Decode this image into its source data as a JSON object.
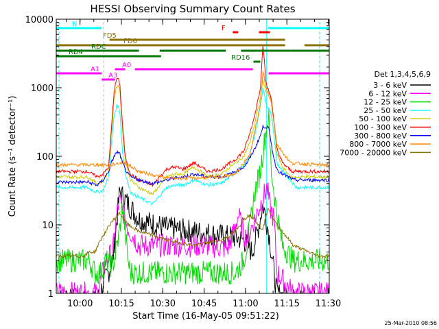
{
  "chart_data": {
    "type": "line",
    "title": "HESSI Observing Summary Count Rates",
    "xlabel": "Start Time (16-May-05 09:51:22)",
    "ylabel": "Count Rate (s⁻¹ detector⁻¹)",
    "y_scale": "log",
    "ylim": [
      1,
      10000
    ],
    "xlim_minutes": [
      0,
      99
    ],
    "x_ticks": [
      {
        "label": "10:00",
        "t": 8.63
      },
      {
        "label": "10:15",
        "t": 23.63
      },
      {
        "label": "10:30",
        "t": 38.63
      },
      {
        "label": "10:45",
        "t": 53.63
      },
      {
        "label": "11:00",
        "t": 68.63
      },
      {
        "label": "11:15",
        "t": 83.63
      },
      {
        "label": "11:30",
        "t": 98.63
      }
    ],
    "y_ticks": [
      {
        "label": "1",
        "v": 1
      },
      {
        "label": "10",
        "v": 10
      },
      {
        "label": "100",
        "v": 100
      },
      {
        "label": "1000",
        "v": 1000
      },
      {
        "label": "10000",
        "v": 10000
      }
    ],
    "timestamp": "25-Mar-2010 08:56",
    "legend_title": "Det 1,3,4,5,6,9",
    "legend_placement": "right",
    "series": [
      {
        "name": "3 - 6 keV",
        "color": "#000000",
        "key": [
          1,
          15,
          20.5,
          23,
          30,
          40,
          50,
          60,
          65,
          68,
          71,
          73,
          75,
          77,
          80,
          86,
          95
        ],
        "vals": [
          0.8,
          0.8,
          3,
          30,
          12,
          9,
          8,
          7,
          6.5,
          6,
          4,
          8,
          20,
          8,
          1,
          0.8,
          0.8
        ]
      },
      {
        "name": "6 - 12 keV",
        "color": "#ff00ff",
        "key": [
          1,
          12,
          15,
          18,
          20.5,
          22,
          23,
          26,
          30,
          40,
          55,
          62,
          64,
          66,
          69,
          72,
          75,
          76.5,
          77.5,
          79,
          80,
          86,
          95
        ],
        "vals": [
          1,
          1,
          1,
          3,
          4,
          15,
          22,
          9,
          5,
          5,
          5,
          4.5,
          7,
          14,
          6,
          12,
          25,
          35,
          18,
          12,
          2,
          1,
          1
        ]
      },
      {
        "name": "12 - 25 keV",
        "color": "#00dd00",
        "key": [
          0,
          10,
          12,
          14,
          16,
          18,
          20,
          21,
          23,
          24,
          25,
          26,
          27,
          30,
          35,
          40,
          50,
          60,
          65,
          68,
          70,
          72,
          74,
          76,
          77,
          78,
          80,
          82,
          86,
          95,
          99
        ],
        "vals": [
          3,
          3,
          3,
          2,
          2,
          3,
          2.5,
          3,
          8,
          20,
          8,
          3,
          2,
          2,
          2,
          2,
          2,
          2,
          2,
          3,
          8,
          30,
          60,
          230,
          400,
          60,
          15,
          5,
          3,
          3,
          3
        ]
      },
      {
        "name": "25 - 50 keV",
        "color": "#00ffff",
        "key": [
          0,
          10,
          11.5,
          13,
          15,
          17,
          19,
          20,
          21,
          22,
          23,
          24,
          25,
          26,
          27,
          28,
          30,
          35,
          40,
          43,
          46,
          50,
          55,
          60,
          63,
          65,
          68,
          70,
          72,
          74,
          75,
          76,
          77,
          78,
          79,
          80,
          82,
          85,
          86,
          87,
          95,
          99
        ],
        "vals": [
          35,
          35,
          35,
          32,
          30,
          32,
          50,
          150,
          400,
          550,
          500,
          120,
          60,
          40,
          30,
          28,
          25,
          20,
          35,
          38,
          38,
          45,
          38,
          40,
          50,
          60,
          70,
          100,
          200,
          550,
          1000,
          600,
          500,
          400,
          200,
          80,
          60,
          45,
          40,
          35,
          35,
          35
        ]
      },
      {
        "name": "50 - 100 keV",
        "color": "#cccc00",
        "key": [
          0,
          10,
          11.5,
          13,
          15,
          17,
          19,
          20,
          21,
          22,
          23,
          24,
          25,
          26,
          27,
          30,
          35,
          40,
          43,
          46,
          50,
          55,
          60,
          63,
          65,
          68,
          70,
          72,
          74,
          75,
          76,
          77,
          78,
          79,
          80,
          82,
          85,
          86,
          87,
          95,
          99
        ],
        "vals": [
          50,
          50,
          50,
          45,
          40,
          45,
          60,
          200,
          700,
          1100,
          1000,
          250,
          90,
          60,
          45,
          35,
          28,
          50,
          55,
          55,
          70,
          50,
          55,
          70,
          80,
          100,
          150,
          300,
          700,
          1300,
          900,
          850,
          700,
          300,
          110,
          70,
          50,
          48,
          50,
          50,
          50
        ]
      },
      {
        "name": "100 - 300 keV",
        "color": "#ff0000",
        "key": [
          0,
          10,
          11.5,
          13,
          15,
          17,
          19,
          20,
          21,
          22,
          23,
          24,
          25,
          26,
          27,
          30,
          35,
          40,
          43,
          46,
          50,
          55,
          60,
          63,
          65,
          68,
          70,
          72,
          74,
          75,
          76,
          77,
          78,
          79,
          80,
          82,
          85,
          86,
          87,
          95,
          99
        ],
        "vals": [
          60,
          60,
          60,
          55,
          50,
          55,
          70,
          250,
          900,
          1400,
          1200,
          300,
          100,
          70,
          55,
          45,
          38,
          65,
          70,
          65,
          80,
          60,
          65,
          80,
          90,
          120,
          200,
          400,
          1000,
          4500,
          1200,
          900,
          700,
          300,
          130,
          80,
          62,
          60,
          60,
          60,
          60
        ]
      },
      {
        "name": "300 - 800 keV",
        "color": "#0000ff",
        "key": [
          0,
          10,
          11.5,
          13,
          15,
          17,
          19,
          20,
          21,
          22,
          23,
          24,
          25,
          26,
          27,
          30,
          35,
          40,
          43,
          46,
          50,
          55,
          60,
          63,
          65,
          68,
          70,
          72,
          74,
          75,
          76,
          77,
          78,
          79,
          80,
          82,
          85,
          86,
          87,
          95,
          99
        ],
        "vals": [
          42,
          42,
          42,
          40,
          38,
          45,
          60,
          80,
          100,
          115,
          110,
          80,
          65,
          55,
          50,
          45,
          40,
          45,
          48,
          50,
          55,
          50,
          50,
          55,
          60,
          70,
          90,
          130,
          200,
          270,
          270,
          260,
          150,
          90,
          65,
          55,
          48,
          45,
          45,
          45,
          45
        ]
      },
      {
        "name": "800 - 7000 keV",
        "color": "#ff8800",
        "key": [
          0,
          10,
          15,
          20,
          23,
          25,
          30,
          40,
          50,
          60,
          65,
          70,
          74,
          75,
          76,
          77,
          78,
          80,
          85,
          95,
          99
        ],
        "vals": [
          75,
          75,
          75,
          75,
          80,
          80,
          60,
          48,
          48,
          50,
          55,
          100,
          550,
          1800,
          1000,
          800,
          600,
          150,
          80,
          75,
          75
        ]
      },
      {
        "name": "7000 - 20000 keV",
        "color": "#8b6f00",
        "key": [
          0,
          10,
          12,
          14,
          16,
          18,
          20,
          22,
          23,
          24,
          26,
          28,
          30,
          35,
          40,
          50,
          60,
          63,
          66,
          68,
          70,
          72,
          74,
          75,
          76,
          77,
          78,
          80,
          82,
          86,
          95,
          99
        ],
        "vals": [
          3.5,
          3.5,
          4,
          4,
          6,
          8,
          11,
          13,
          15,
          13,
          10,
          9,
          8,
          7,
          6,
          5,
          6,
          7,
          9,
          12,
          14,
          12,
          9,
          9,
          13,
          18,
          14,
          10,
          8,
          5,
          3.5,
          3.5
        ]
      }
    ]
  },
  "flags": [
    {
      "label": "N",
      "color": "#00ffff",
      "segments": [
        [
          0,
          16.5
        ],
        [
          76.8,
          99
        ]
      ],
      "level": 1
    },
    {
      "label": "FD5",
      "color": "#8b6f00",
      "segments": [
        [
          19.3,
          83
        ]
      ],
      "level": 2
    },
    {
      "label": "FD6",
      "color": "#8b6f00",
      "segments": [
        [
          0,
          83
        ],
        [
          90,
          99
        ]
      ],
      "level": 3
    },
    {
      "label": "RDC",
      "color": "#007700",
      "segments": [
        [
          0,
          30
        ],
        [
          37.5,
          61.5
        ],
        [
          67,
          85
        ],
        [
          85,
          99
        ]
      ],
      "level": 4
    },
    {
      "label": "RD4",
      "color": "#007700",
      "segments": [
        [
          0,
          38
        ]
      ],
      "level": 5
    },
    {
      "label": "RD16",
      "color": "#007700",
      "segments": [
        [
          71.5,
          74
        ]
      ],
      "level": 6
    },
    {
      "label": "A0",
      "color": "#ff00ff",
      "segments": [
        [
          21.3,
          25
        ],
        [
          28.5,
          71.3
        ]
      ],
      "level": 7
    },
    {
      "label": "A1",
      "color": "#ff00ff",
      "segments": [
        [
          0,
          16.5
        ],
        [
          77,
          99
        ]
      ],
      "level": 8
    },
    {
      "label": "A3",
      "color": "#ff00ff",
      "segments": [
        [
          16.5,
          21.3
        ]
      ],
      "level": 9
    },
    {
      "label": "F",
      "color": "#ff0000",
      "segments": [
        [
          64,
          66
        ],
        [
          73.5,
          77.5
        ]
      ],
      "level": 0
    }
  ]
}
